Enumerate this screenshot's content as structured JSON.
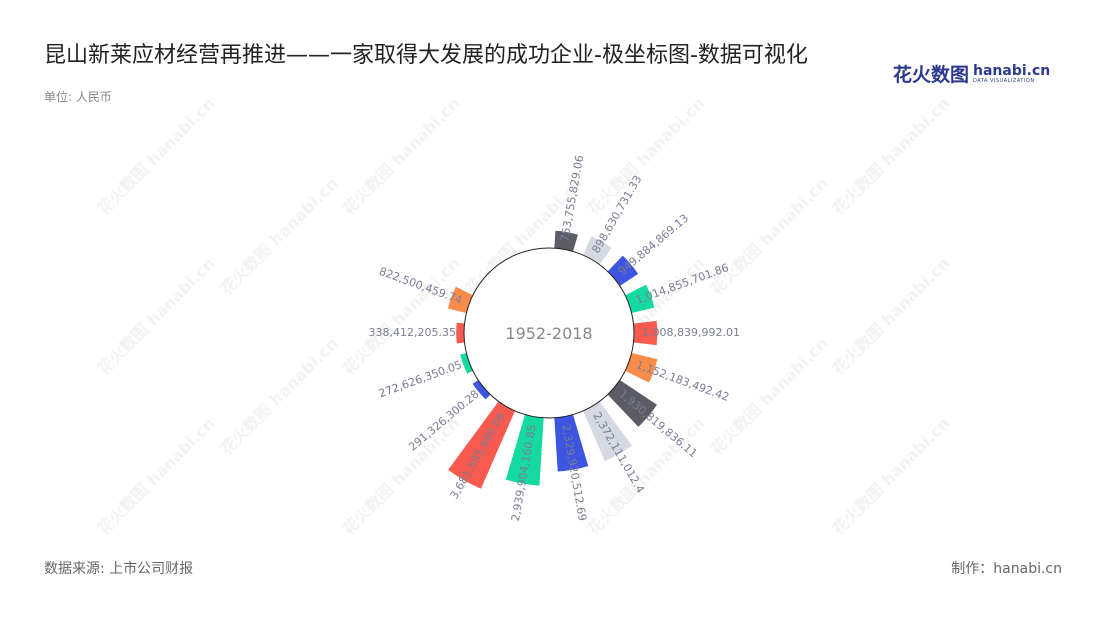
{
  "title": "昆山新莱应材经营再推进——一家取得大发展的成功企业-极坐标图-数据可视化",
  "unit": "单位: 人民币",
  "center_label": "1952-2018",
  "logo": {
    "cn": "花火数图",
    "en": "hanabi.cn",
    "tagline": "DATA VISUALIZATION"
  },
  "source": "数据来源: 上市公司财报",
  "maker": "制作：hanabi.cn",
  "watermark_text": "花火数图 hanabi.cn",
  "colors": {
    "palette": [
      "#5b5c66",
      "#d5d9e2",
      "#3d55e0",
      "#14d9a0",
      "#f95a4f",
      "#fa8c4a"
    ]
  },
  "chart_data": {
    "type": "bar",
    "polar": true,
    "categories": [
      "",
      "",
      "",
      "",
      "",
      "",
      "",
      "",
      "",
      "",
      "",
      "",
      "",
      "",
      "",
      "",
      "",
      ""
    ],
    "values": [
      753755829.06,
      898630731.33,
      949884869.13,
      1014855701.86,
      1008839992.01,
      1152183492.42,
      1930819836.11,
      2372111012.4,
      2329920512.69,
      2939904160.85,
      3681595686.06,
      291326300.28,
      272626350.05,
      338412205.35,
      822500459.74
    ],
    "labels": [
      "753,755,829.06",
      "898,630,731.33",
      "949,884,869.13",
      "1,014,855,701.86",
      "1,008,839,992.01",
      "1,152,183,492.42",
      "1,930,819,836.11",
      "2,372,111,012.4",
      "2,329,920,512.69",
      "2,939,904,160.85",
      "3,681,595,686.06",
      "291,326,300.28",
      "272,626,350.05",
      "338,412,205.35",
      "822,500,459.74"
    ],
    "colors": [
      "#5b5c66",
      "#d5d9e2",
      "#3d55e0",
      "#14d9a0",
      "#f95a4f",
      "#fa8c4a",
      "#5b5c66",
      "#d5d9e2",
      "#3d55e0",
      "#14d9a0",
      "#f95a4f",
      "#3d55e0",
      "#14d9a0",
      "#f95a4f",
      "#fa8c4a"
    ],
    "title": "",
    "legend": "none"
  }
}
